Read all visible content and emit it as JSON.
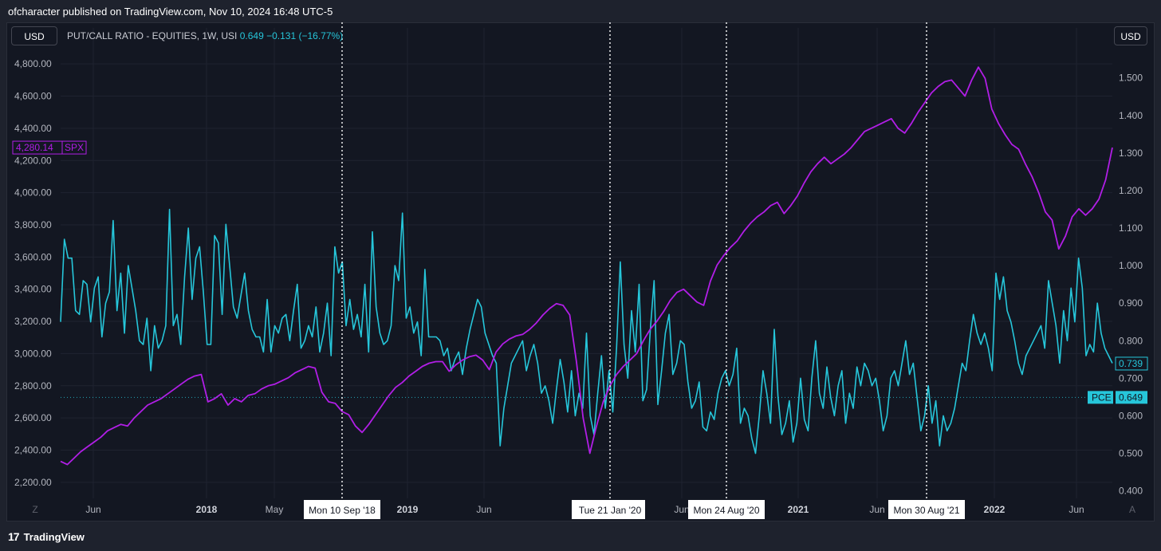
{
  "header": {
    "published_text": "ofcharacter published on TradingView.com, Nov 10, 2024 16:48 UTC-5"
  },
  "toolbar": {
    "currency_left": "USD",
    "currency_right": "USD",
    "scale_mode_left": "Z",
    "scale_mode_right": "A"
  },
  "legend": {
    "name": "PUT/CALL RATIO - EQUITIES, 1W, USI",
    "value": "0.649",
    "change": "−0.131 (−16.77%)"
  },
  "footer": {
    "brand": "TradingView",
    "logo_text": "17"
  },
  "colors": {
    "spx": "#b11ee6",
    "pce": "#26c6da",
    "background": "#131722"
  },
  "chart_data": {
    "type": "line",
    "title": "PUT/CALL RATIO - EQUITIES, 1W, USI",
    "x_tick_labels": [
      "Jun",
      "2018",
      "May",
      "2019",
      "Jun",
      "Jun",
      "2021",
      "Jun",
      "2022",
      "Jun"
    ],
    "vertical_markers": [
      "Mon 10 Sep '18",
      "Tue 21 Jan '20",
      "Mon 24 Aug '20",
      "Mon 30 Aug '21"
    ],
    "left_axis": {
      "label": "USD",
      "range": [
        2100,
        4900
      ],
      "ticks": [
        "4,800.00",
        "4,600.00",
        "4,400.00",
        "4,200.00",
        "4,000.00",
        "3,800.00",
        "3,600.00",
        "3,400.00",
        "3,200.00",
        "3,000.00",
        "2,800.00",
        "2,600.00",
        "2,400.00",
        "2,200.00"
      ],
      "last_label": "4,280.14",
      "last_tag": "SPX"
    },
    "right_axis": {
      "label": "USD",
      "range": [
        0.38,
        1.58
      ],
      "ticks": [
        "1.500",
        "1.400",
        "1.300",
        "1.200",
        "1.100",
        "1.000",
        "0.900",
        "0.800",
        "0.700",
        "0.600",
        "0.500",
        "0.400"
      ],
      "pce_value": "0.739",
      "pce_tag": "PCE",
      "pce_last": "0.649"
    },
    "series": [
      {
        "name": "SPX",
        "axis": "left",
        "color": "#b11ee6",
        "values": [
          2330,
          2310,
          2350,
          2390,
          2420,
          2450,
          2480,
          2520,
          2540,
          2560,
          2550,
          2600,
          2640,
          2680,
          2700,
          2720,
          2750,
          2780,
          2810,
          2840,
          2860,
          2870,
          2700,
          2720,
          2750,
          2680,
          2720,
          2700,
          2740,
          2750,
          2780,
          2800,
          2810,
          2830,
          2850,
          2880,
          2900,
          2920,
          2910,
          2760,
          2700,
          2690,
          2640,
          2620,
          2550,
          2510,
          2560,
          2620,
          2680,
          2740,
          2790,
          2820,
          2860,
          2890,
          2920,
          2940,
          2950,
          2950,
          2890,
          2930,
          2960,
          2980,
          2990,
          2960,
          2900,
          3010,
          3060,
          3090,
          3110,
          3120,
          3150,
          3190,
          3240,
          3280,
          3310,
          3300,
          3240,
          2950,
          2600,
          2380,
          2550,
          2700,
          2800,
          2870,
          2920,
          2960,
          3000,
          3080,
          3150,
          3200,
          3260,
          3330,
          3380,
          3400,
          3360,
          3320,
          3300,
          3450,
          3550,
          3610,
          3660,
          3700,
          3760,
          3810,
          3850,
          3880,
          3920,
          3940,
          3870,
          3920,
          3980,
          4060,
          4130,
          4180,
          4220,
          4180,
          4210,
          4240,
          4280,
          4330,
          4380,
          4400,
          4420,
          4440,
          4460,
          4400,
          4370,
          4430,
          4500,
          4560,
          4620,
          4660,
          4690,
          4700,
          4650,
          4600,
          4700,
          4780,
          4710,
          4520,
          4430,
          4360,
          4300,
          4270,
          4180,
          4100,
          4000,
          3880,
          3830,
          3650,
          3730,
          3850,
          3900,
          3860,
          3900,
          3960,
          4080,
          4280
        ]
      },
      {
        "name": "PCE",
        "axis": "right",
        "color": "#26c6da",
        "values": [
          0.85,
          1.07,
          1.02,
          1.02,
          0.88,
          0.87,
          0.96,
          0.95,
          0.85,
          0.94,
          0.97,
          0.81,
          0.9,
          0.93,
          1.12,
          0.88,
          0.98,
          0.82,
          1.0,
          0.94,
          0.88,
          0.8,
          0.79,
          0.86,
          0.72,
          0.84,
          0.78,
          0.8,
          0.84,
          1.15,
          0.84,
          0.87,
          0.79,
          0.97,
          1.1,
          0.91,
          1.02,
          1.05,
          0.93,
          0.79,
          0.79,
          1.08,
          1.06,
          0.87,
          1.11,
          1.0,
          0.89,
          0.86,
          0.92,
          0.98,
          0.88,
          0.83,
          0.81,
          0.81,
          0.77,
          0.91,
          0.77,
          0.84,
          0.82,
          0.86,
          0.87,
          0.8,
          0.88,
          0.95,
          0.78,
          0.8,
          0.84,
          0.81,
          0.89,
          0.77,
          0.82,
          0.9,
          0.76,
          1.05,
          0.98,
          1.01,
          0.84,
          0.91,
          0.83,
          0.87,
          0.81,
          0.95,
          0.77,
          1.09,
          0.89,
          0.82,
          0.79,
          0.8,
          0.84,
          1.0,
          0.96,
          1.14,
          0.86,
          0.89,
          0.82,
          0.85,
          0.76,
          0.99,
          0.81,
          0.81,
          0.81,
          0.8,
          0.76,
          0.78,
          0.72,
          0.75,
          0.77,
          0.71,
          0.78,
          0.83,
          0.87,
          0.91,
          0.89,
          0.82,
          0.79,
          0.76,
          0.74,
          0.52,
          0.62,
          0.68,
          0.74,
          0.76,
          0.78,
          0.8,
          0.72,
          0.76,
          0.79,
          0.74,
          0.66,
          0.68,
          0.64,
          0.58,
          0.67,
          0.75,
          0.69,
          0.61,
          0.72,
          0.6,
          0.66,
          0.62,
          0.82,
          0.6,
          0.55,
          0.66,
          0.76,
          0.62,
          0.72,
          0.61,
          0.78,
          1.01,
          0.79,
          0.7,
          0.88,
          0.77,
          0.95,
          0.64,
          0.67,
          0.83,
          0.96,
          0.63,
          0.72,
          0.82,
          0.87,
          0.71,
          0.74,
          0.8,
          0.79,
          0.69,
          0.62,
          0.64,
          0.69,
          0.57,
          0.56,
          0.61,
          0.59,
          0.66,
          0.7,
          0.72,
          0.68,
          0.71,
          0.78,
          0.58,
          0.62,
          0.6,
          0.54,
          0.5,
          0.6,
          0.72,
          0.66,
          0.58,
          0.83,
          0.65,
          0.55,
          0.58,
          0.64,
          0.53,
          0.58,
          0.7,
          0.59,
          0.56,
          0.7,
          0.8,
          0.66,
          0.62,
          0.73,
          0.65,
          0.6,
          0.68,
          0.72,
          0.58,
          0.66,
          0.62,
          0.73,
          0.68,
          0.74,
          0.72,
          0.68,
          0.7,
          0.64,
          0.56,
          0.6,
          0.7,
          0.72,
          0.68,
          0.74,
          0.8,
          0.71,
          0.74,
          0.65,
          0.56,
          0.6,
          0.68,
          0.58,
          0.64,
          0.52,
          0.6,
          0.56,
          0.58,
          0.62,
          0.68,
          0.74,
          0.72,
          0.8,
          0.87,
          0.82,
          0.79,
          0.82,
          0.78,
          0.72,
          0.98,
          0.91,
          0.97,
          0.88,
          0.85,
          0.8,
          0.74,
          0.71,
          0.76,
          0.78,
          0.8,
          0.82,
          0.84,
          0.78,
          0.96,
          0.9,
          0.84,
          0.74,
          0.88,
          0.8,
          0.94,
          0.85,
          1.02,
          0.94,
          0.76,
          0.79,
          0.77,
          0.9,
          0.82,
          0.78,
          0.76,
          0.74
        ]
      }
    ]
  }
}
